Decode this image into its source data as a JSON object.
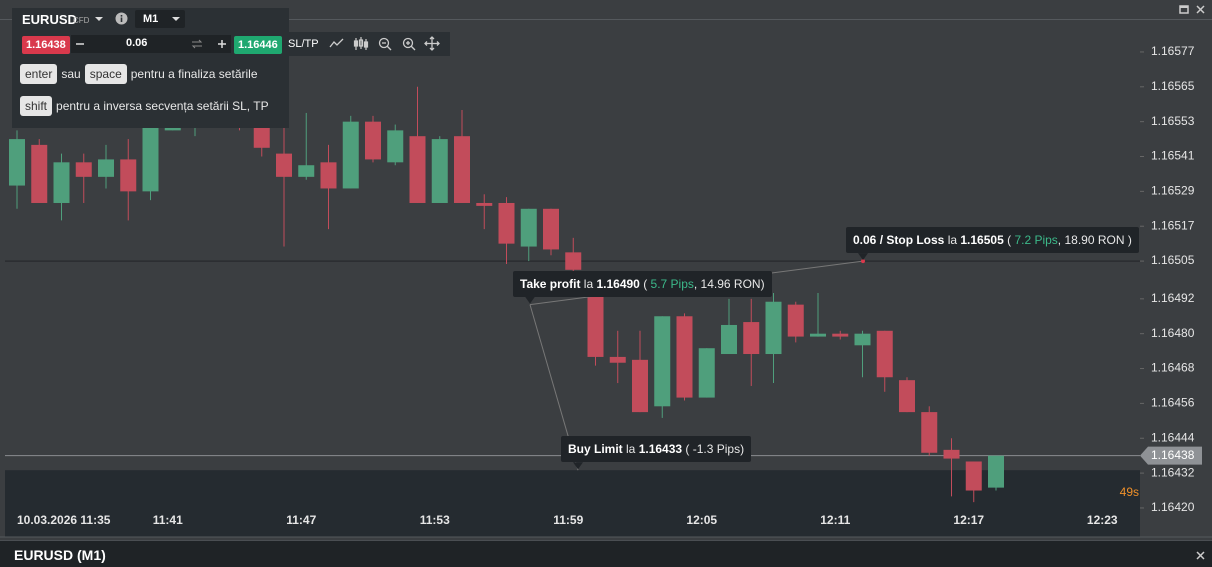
{
  "toolbar": {
    "symbol": "EURUSD",
    "symbol_type": "CFD",
    "timeframe": "M1",
    "sell_price": "1.16438",
    "volume": "0.06",
    "buy_price": "1.16446",
    "sltp": "SL/TP"
  },
  "hints": [
    [
      {
        "text": "enter",
        "key": true
      },
      {
        "text": "sau"
      },
      {
        "text": "space",
        "key": true
      },
      {
        "text": "pentru a finaliza setările"
      }
    ],
    [
      {
        "text": "shift",
        "key": true
      },
      {
        "text": "pentru a inversa secvența setării SL, TP"
      }
    ]
  ],
  "chart_data": {
    "type": "candlestick",
    "categories": [
      null,
      "10.03.2026 11:35",
      null,
      null,
      null,
      null,
      null,
      "11:41",
      null,
      null,
      null,
      null,
      null,
      "11:47",
      null,
      null,
      null,
      null,
      null,
      "11:53",
      null,
      null,
      null,
      null,
      null,
      "11:59",
      null,
      null,
      null,
      null,
      null,
      "12:05",
      null,
      null,
      null,
      null,
      null,
      "12:11",
      null,
      null,
      null,
      null,
      null,
      "12:17",
      null,
      null,
      null,
      null,
      null,
      "12:23"
    ],
    "open": [
      1.16531,
      1.16545,
      1.16525,
      1.16539,
      1.16534,
      1.1654,
      1.16529,
      1.1655,
      1.16552,
      1.1656,
      1.16555,
      1.16551,
      1.16542,
      1.16534,
      1.16539,
      1.1653,
      1.16553,
      1.16539,
      1.16548,
      1.16525,
      1.16548,
      1.16525,
      1.16525,
      1.1651,
      1.16523,
      1.16508,
      1.16499,
      1.16472,
      1.16471,
      1.16455,
      1.16486,
      1.16458,
      1.16473,
      1.16484,
      1.16473,
      1.1649,
      1.16479,
      1.1648,
      1.16476,
      1.16481,
      1.16464,
      1.16453,
      1.1644,
      1.16436,
      1.16427,
      null,
      null,
      null,
      null,
      null
    ],
    "high": [
      1.1655,
      1.16547,
      1.16542,
      1.16542,
      1.16545,
      1.16547,
      1.16561,
      1.16557,
      1.16566,
      1.16568,
      1.16583,
      1.16561,
      1.16554,
      1.16556,
      1.16545,
      1.16555,
      1.16555,
      1.16552,
      1.16565,
      1.16548,
      1.16557,
      1.16528,
      1.16527,
      1.16523,
      1.16523,
      1.16513,
      1.165,
      1.16481,
      1.16481,
      1.16486,
      1.16487,
      1.16475,
      1.16492,
      1.16492,
      1.16494,
      1.16491,
      1.16494,
      1.16481,
      1.16481,
      1.16481,
      1.16465,
      1.16455,
      1.16444,
      1.16436,
      1.16437,
      null,
      null,
      null,
      null,
      null
    ],
    "low": [
      1.16523,
      1.16525,
      1.16519,
      1.16525,
      1.1653,
      1.16519,
      1.16526,
      1.1655,
      1.16548,
      1.16552,
      1.1655,
      1.16541,
      1.1651,
      1.16533,
      1.16516,
      1.1653,
      1.16539,
      1.16538,
      1.16525,
      1.16525,
      1.16525,
      1.16516,
      1.16504,
      1.16505,
      1.16507,
      1.165,
      1.16469,
      1.16463,
      1.16453,
      1.16451,
      1.16457,
      1.16458,
      1.16473,
      1.16462,
      1.16463,
      1.16477,
      1.16479,
      1.16478,
      1.16465,
      1.1646,
      1.16453,
      1.16438,
      1.16424,
      1.16422,
      1.16426,
      null,
      null,
      null,
      null,
      null
    ],
    "close": [
      1.16547,
      1.16525,
      1.16539,
      1.16534,
      1.1654,
      1.16529,
      1.16552,
      1.16552,
      1.1656,
      1.16555,
      1.16553,
      1.16544,
      1.16534,
      1.16538,
      1.1653,
      1.16553,
      1.1654,
      1.1655,
      1.16525,
      1.16547,
      1.16525,
      1.16524,
      1.16511,
      1.16523,
      1.16509,
      1.16502,
      1.16472,
      1.1647,
      1.16453,
      1.16486,
      1.16458,
      1.16475,
      1.16483,
      1.16473,
      1.16491,
      1.16479,
      1.1648,
      1.16479,
      1.1648,
      1.16465,
      1.16453,
      1.16439,
      1.16437,
      1.16426,
      1.16438,
      null,
      null,
      null,
      null,
      null
    ],
    "up_color": "#4f9f7c",
    "down_color": "#c24c5b",
    "ylim": [
      1.1641,
      1.16588
    ],
    "yticks": [
      1.16577,
      1.16565,
      1.16553,
      1.16541,
      1.16529,
      1.16517,
      1.16505,
      1.16492,
      {
        "value": 1.1648,
        "label": "1.16480"
      },
      1.16468,
      1.16456,
      1.16444,
      1.16432,
      {
        "value": 1.1642,
        "label": "1.16420"
      }
    ],
    "current_price": 1.16438,
    "countdown": "49s",
    "orders": [
      {
        "kind": "take_profit",
        "price": 1.1649,
        "segments": [
          {
            "text": "Take profit",
            "bold": true
          },
          {
            "text": " la "
          },
          {
            "text": "1.16490",
            "bold": true
          },
          {
            "text": " ( "
          },
          {
            "text": "5.7 Pips",
            "green": true
          },
          {
            "text": ", 14.96 RON)"
          }
        ]
      },
      {
        "kind": "stop_loss",
        "price": 1.16505,
        "segments": [
          {
            "text": "0.06 / Stop Loss",
            "bold": true
          },
          {
            "text": " la "
          },
          {
            "text": "1.16505",
            "bold": true
          },
          {
            "text": " ( "
          },
          {
            "text": "7.2 Pips",
            "green": true
          },
          {
            "text": ", 18.90 RON )"
          }
        ]
      },
      {
        "kind": "buy_limit",
        "price": 1.16433,
        "segments": [
          {
            "text": "Buy Limit",
            "bold": true
          },
          {
            "text": " la "
          },
          {
            "text": "1.16433",
            "bold": true
          },
          {
            "text": " ( -1.3 Pips)"
          }
        ]
      }
    ]
  },
  "footer": {
    "title": "EURUSD (M1)"
  }
}
